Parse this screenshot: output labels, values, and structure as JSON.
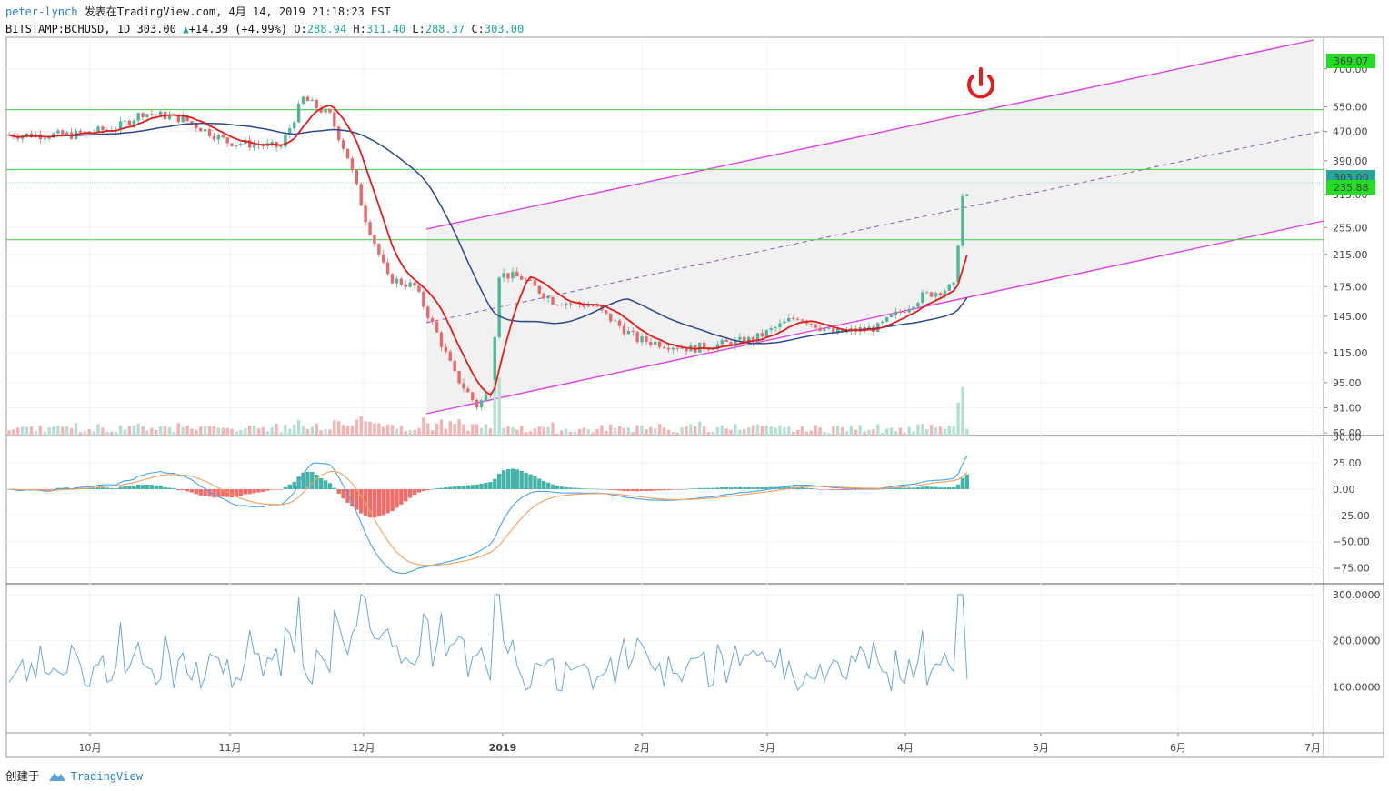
{
  "header": {
    "author": "peter-lynch",
    "published": "发表在TradingView.com, 4月 14, 2019 21:18:23 EST",
    "symbol": "BITSTAMP:BCHUSD, 1D 303.00",
    "change": "+14.39 (+4.99%)",
    "o_label": "O:",
    "o_value": "288.94",
    "h_label": "H:",
    "h_value": "311.40",
    "l_label": "L:",
    "l_value": "288.37",
    "c_label": "C:",
    "c_value": "303.00"
  },
  "footer": {
    "created_by": "创建于",
    "brand": "TradingView"
  },
  "colors": {
    "up": "#26a69a",
    "down": "#ef5350",
    "ma_fast": "#e31c1c",
    "ma_slow": "#2a4a8a",
    "channel": "#e040e8",
    "support": "#3cd03c",
    "macd": "#4aa3e8",
    "signal": "#f5a05c",
    "osc": "#6aa7d8"
  },
  "icons": {
    "power": "power-icon",
    "logo": "tradingview-cloud-icon"
  },
  "price_axis": {
    "labels": [
      "700.00",
      "550.00",
      "470.00",
      "390.00",
      "315.00",
      "255.00",
      "215.00",
      "175.00",
      "145.00",
      "115.00",
      "95.00",
      "81.00",
      "69.00"
    ],
    "tags": [
      {
        "label": "369.07",
        "bg": "#22dd22",
        "fg": "#000"
      },
      {
        "label": "235.88",
        "bg": "#22dd22",
        "fg": "#000"
      },
      {
        "label": "303.00",
        "bg": "#26a69a",
        "fg": "#fff"
      }
    ]
  },
  "macd_axis": {
    "labels": [
      "50.00",
      "25.00",
      "0.00",
      "−25.00",
      "−50.00",
      "−75.00"
    ]
  },
  "osc_axis": {
    "labels": [
      "300.0000",
      "200.0000",
      "100.0000"
    ]
  },
  "time_axis": {
    "labels": [
      "10月",
      "11月",
      "12月",
      "2019",
      "2月",
      "3月",
      "4月",
      "5月",
      "6月",
      "7月"
    ]
  },
  "chart_data": {
    "type": "candlestick",
    "symbol": "BITSTAMP:BCHUSD",
    "interval": "1D",
    "y_scale": "log",
    "ylim": [
      65,
      720
    ],
    "horizontal_levels": [
      540,
      369.07,
      235.88
    ],
    "approx_closes": [
      {
        "date": "2018-09-15",
        "close": 460
      },
      {
        "date": "2018-09-25",
        "close": 480
      },
      {
        "date": "2018-10-01",
        "close": 530
      },
      {
        "date": "2018-10-10",
        "close": 510
      },
      {
        "date": "2018-10-20",
        "close": 440
      },
      {
        "date": "2018-11-01",
        "close": 425
      },
      {
        "date": "2018-11-06",
        "close": 580
      },
      {
        "date": "2018-11-12",
        "close": 520
      },
      {
        "date": "2018-11-16",
        "close": 400
      },
      {
        "date": "2018-11-20",
        "close": 270
      },
      {
        "date": "2018-11-25",
        "close": 185
      },
      {
        "date": "2018-12-01",
        "close": 175
      },
      {
        "date": "2018-12-06",
        "close": 130
      },
      {
        "date": "2018-12-10",
        "close": 100
      },
      {
        "date": "2018-12-15",
        "close": 82
      },
      {
        "date": "2018-12-18",
        "close": 90
      },
      {
        "date": "2018-12-20",
        "close": 190
      },
      {
        "date": "2018-12-25",
        "close": 185
      },
      {
        "date": "2019-01-01",
        "close": 160
      },
      {
        "date": "2019-01-10",
        "close": 155
      },
      {
        "date": "2019-01-20",
        "close": 125
      },
      {
        "date": "2019-02-01",
        "close": 118
      },
      {
        "date": "2019-02-15",
        "close": 125
      },
      {
        "date": "2019-02-25",
        "close": 145
      },
      {
        "date": "2019-03-05",
        "close": 130
      },
      {
        "date": "2019-03-15",
        "close": 135
      },
      {
        "date": "2019-03-25",
        "close": 165
      },
      {
        "date": "2019-04-01",
        "close": 175
      },
      {
        "date": "2019-04-03",
        "close": 310
      },
      {
        "date": "2019-04-07",
        "close": 300
      },
      {
        "date": "2019-04-11",
        "close": 275
      },
      {
        "date": "2019-04-14",
        "close": 303
      }
    ],
    "subpanels": [
      "MACD",
      "Oscillator"
    ],
    "macd_ylim": [
      -85,
      52
    ],
    "osc_ylim": [
      0,
      310
    ]
  }
}
